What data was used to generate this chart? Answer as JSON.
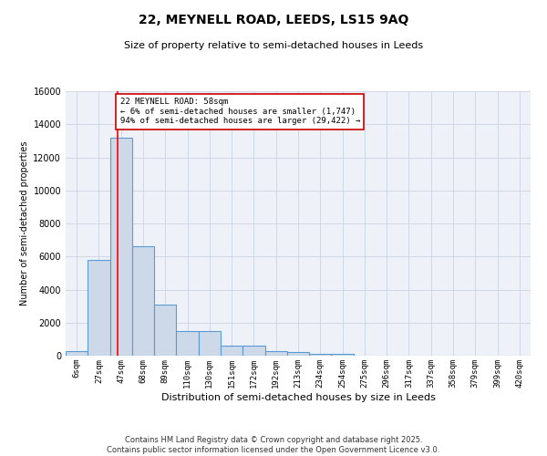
{
  "title": "22, MEYNELL ROAD, LEEDS, LS15 9AQ",
  "subtitle": "Size of property relative to semi-detached houses in Leeds",
  "xlabel": "Distribution of semi-detached houses by size in Leeds",
  "ylabel": "Number of semi-detached properties",
  "bin_labels": [
    "6sqm",
    "27sqm",
    "47sqm",
    "68sqm",
    "89sqm",
    "110sqm",
    "130sqm",
    "151sqm",
    "172sqm",
    "192sqm",
    "213sqm",
    "234sqm",
    "254sqm",
    "275sqm",
    "296sqm",
    "317sqm",
    "337sqm",
    "358sqm",
    "379sqm",
    "399sqm",
    "420sqm"
  ],
  "bar_values": [
    250,
    5800,
    13200,
    6600,
    3100,
    1500,
    1500,
    600,
    600,
    250,
    200,
    100,
    100,
    0,
    0,
    0,
    0,
    0,
    0,
    0,
    0
  ],
  "bar_color": "#cdd9e8",
  "bar_edge_color": "#5b9bd5",
  "bar_edge_width": 0.8,
  "ylim": [
    0,
    16000
  ],
  "yticks": [
    0,
    2000,
    4000,
    6000,
    8000,
    10000,
    12000,
    14000,
    16000
  ],
  "red_line_x": 1.85,
  "annotation_text": "22 MEYNELL ROAD: 58sqm\n← 6% of semi-detached houses are smaller (1,747)\n94% of semi-detached houses are larger (29,422) →",
  "annotation_box_color": "#cc0000",
  "footer_line1": "Contains HM Land Registry data © Crown copyright and database right 2025.",
  "footer_line2": "Contains public sector information licensed under the Open Government Licence v3.0.",
  "grid_color": "#d0d8e8",
  "background_color": "#eef2f8"
}
